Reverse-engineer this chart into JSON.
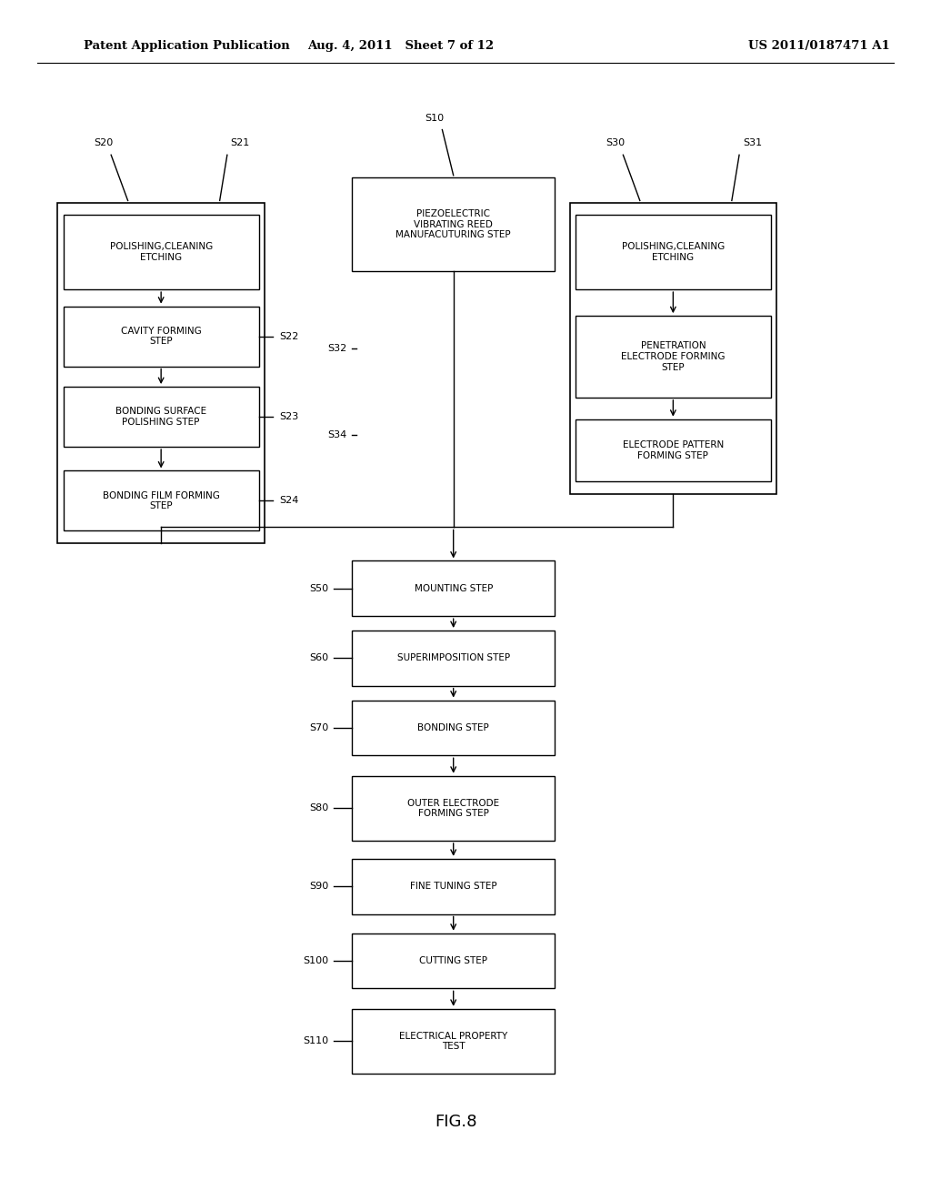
{
  "bg_color": "#ffffff",
  "header_left": "Patent Application Publication",
  "header_mid": "Aug. 4, 2011   Sheet 7 of 12",
  "header_right": "US 2011/0187471 A1",
  "figure_label": "FIG.8"
}
